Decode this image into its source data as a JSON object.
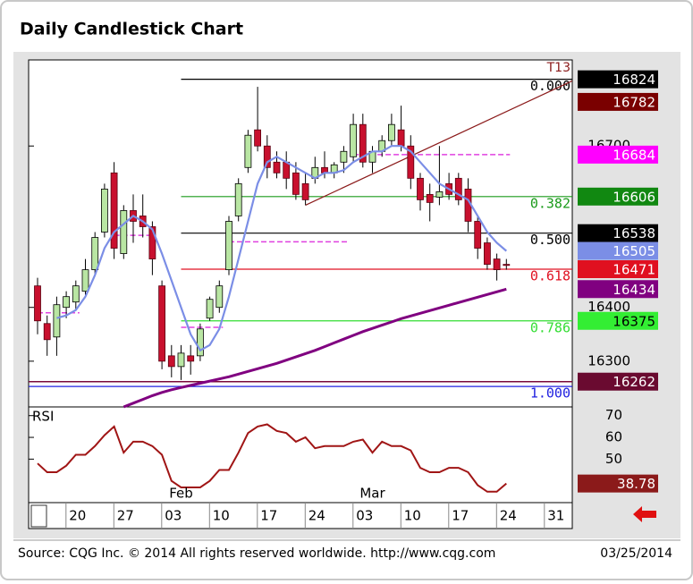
{
  "chart_data": {
    "type": "candlestick",
    "title": "Daily Candlestick Chart",
    "source": "Source: CQG Inc. © 2014 All rights reserved worldwide. http://www.cqg.com",
    "date": "03/25/2014",
    "ylim": [
      16215,
      16860
    ],
    "yticks": [
      16300,
      16400,
      16700
    ],
    "up_color": "#b9e6a3",
    "down_color": "#c8102e",
    "open": [
      16440,
      16370,
      16345,
      16400,
      16410,
      16430,
      16470,
      16540,
      16650,
      16500,
      16580,
      16570,
      16550,
      16440,
      16310,
      16290,
      16310,
      16310,
      16380,
      16400,
      16470,
      16570,
      16660,
      16730,
      16700,
      16670,
      16670,
      16650,
      16630,
      16640,
      16660,
      16650,
      16670,
      16680,
      16740,
      16670,
      16690,
      16710,
      16730,
      16700,
      16640,
      16610,
      16605,
      16630,
      16640,
      16620,
      16560,
      16520,
      16490,
      16480
    ],
    "high": [
      16455,
      16385,
      16420,
      16430,
      16450,
      16490,
      16540,
      16630,
      16670,
      16590,
      16610,
      16610,
      16560,
      16450,
      16330,
      16330,
      16330,
      16370,
      16420,
      16450,
      16570,
      16640,
      16730,
      16810,
      16720,
      16690,
      16690,
      16670,
      16650,
      16680,
      16690,
      16670,
      16700,
      16760,
      16760,
      16700,
      16720,
      16760,
      16775,
      16720,
      16650,
      16630,
      16700,
      16650,
      16650,
      16640,
      16570,
      16530,
      16500,
      16490
    ],
    "low": [
      16350,
      16310,
      16310,
      16380,
      16395,
      16420,
      16460,
      16530,
      16490,
      16490,
      16520,
      16530,
      16460,
      16285,
      16270,
      16265,
      16275,
      16300,
      16375,
      16390,
      16460,
      16560,
      16650,
      16690,
      16640,
      16640,
      16620,
      16600,
      16590,
      16630,
      16640,
      16640,
      16650,
      16670,
      16660,
      16650,
      16680,
      16700,
      16690,
      16620,
      16580,
      16560,
      16590,
      16600,
      16590,
      16540,
      16490,
      16470,
      16450,
      16470
    ],
    "close": [
      16375,
      16340,
      16405,
      16420,
      16440,
      16470,
      16530,
      16620,
      16510,
      16580,
      16560,
      16550,
      16490,
      16300,
      16290,
      16315,
      16300,
      16360,
      16415,
      16440,
      16560,
      16630,
      16720,
      16700,
      16660,
      16650,
      16640,
      16610,
      16600,
      16660,
      16650,
      16665,
      16690,
      16740,
      16670,
      16690,
      16710,
      16740,
      16700,
      16640,
      16600,
      16595,
      16615,
      16610,
      16600,
      16560,
      16510,
      16480,
      16470,
      16478
    ],
    "ma_fast": {
      "color": "#7b8ee6",
      "values": [
        null,
        null,
        16380,
        16385,
        16395,
        16420,
        16460,
        16510,
        16540,
        16555,
        16570,
        16560,
        16545,
        16500,
        16450,
        16400,
        16350,
        16320,
        16330,
        16360,
        16420,
        16490,
        16560,
        16630,
        16670,
        16680,
        16670,
        16660,
        16650,
        16640,
        16650,
        16650,
        16655,
        16670,
        16680,
        16690,
        16690,
        16700,
        16700,
        16690,
        16670,
        16650,
        16630,
        16620,
        16610,
        16600,
        16570,
        16540,
        16520,
        16505
      ]
    },
    "ma_slow": {
      "color": "#800080",
      "values": [
        null,
        null,
        null,
        null,
        null,
        null,
        null,
        null,
        null,
        16215,
        16222,
        16229,
        16236,
        16242,
        16247,
        16251,
        16255,
        16259,
        16263,
        16267,
        16271,
        16276,
        16281,
        16286,
        16291,
        16296,
        16302,
        16308,
        16314,
        16320,
        16327,
        16334,
        16341,
        16348,
        16355,
        16361,
        16367,
        16373,
        16379,
        16384,
        16389,
        16394,
        16399,
        16404,
        16409,
        16414,
        16419,
        16424,
        16429,
        16434
      ]
    },
    "fib_levels": [
      {
        "label": "0.000",
        "value": 16824,
        "color": "#000000",
        "start": 15
      },
      {
        "label": "0.382",
        "value": 16606,
        "color": "#1a9a1a",
        "start": 15
      },
      {
        "label": "0.500",
        "value": 16538,
        "color": "#000000",
        "start": 15
      },
      {
        "label": "0.618",
        "value": 16471,
        "color": "#e01020",
        "start": 15
      },
      {
        "label": "0.786",
        "value": 16375,
        "color": "#33dd33",
        "start": 15
      },
      {
        "label": "1.000",
        "value": 16253,
        "color": "#2020e0",
        "start": -1
      }
    ],
    "level_lines": [
      {
        "value": 16262,
        "color": "#7a0a3a",
        "start": -1
      }
    ],
    "dashed_levels": [
      {
        "value": 16390,
        "start": 0,
        "end": 4
      },
      {
        "value": 16534,
        "start": 8,
        "end": 12
      },
      {
        "value": 16363,
        "start": 15,
        "end": 19
      },
      {
        "value": 16522,
        "start": 20,
        "end": 32
      },
      {
        "value": 16684,
        "start": 33,
        "end": 49
      }
    ],
    "dashed_color": "#e040e0",
    "trendline": {
      "label": "T13",
      "color": "#8b1a1a",
      "from": [
        28,
        16590
      ],
      "to": [
        56,
        16822
      ]
    },
    "price_markers": [
      {
        "value": 16824,
        "color": "#000000",
        "text_color": "#ffffff"
      },
      {
        "value": 16782,
        "color": "#7a0000",
        "text_color": "#ffffff"
      },
      {
        "value": 16684,
        "color": "#ff00ff",
        "text_color": "#ffffff"
      },
      {
        "value": 16606,
        "color": "#118811",
        "text_color": "#ffffff"
      },
      {
        "value": 16538,
        "color": "#000000",
        "text_color": "#ffffff"
      },
      {
        "value": 16505,
        "color": "#7b8ee6",
        "text_color": "#ffffff"
      },
      {
        "value": 16471,
        "color": "#e01020",
        "text_color": "#ffffff"
      },
      {
        "value": 16434,
        "color": "#800080",
        "text_color": "#ffffff"
      },
      {
        "value": 16375,
        "color": "#33ee33",
        "text_color": "#000000"
      },
      {
        "value": 16262,
        "color": "#6a0a30",
        "text_color": "#ffffff"
      }
    ],
    "x_labels": [
      "20",
      "27",
      "03",
      "10",
      "17",
      "24",
      "03",
      "10",
      "17",
      "24",
      "31"
    ],
    "x_label_index": [
      4,
      9,
      14,
      19,
      24,
      29,
      34,
      39,
      44,
      49,
      54
    ],
    "months": [
      "Feb",
      "Mar"
    ],
    "month_index": [
      15,
      35
    ],
    "rsi": {
      "label": "RSI",
      "color": "#a01515",
      "marker_color": "#8b1a1a",
      "ylim": [
        30,
        74
      ],
      "yticks": [
        50,
        60,
        70
      ],
      "values": [
        48,
        44,
        44,
        47,
        52,
        52,
        56,
        61,
        65,
        53,
        58,
        58,
        56,
        52,
        40,
        37,
        37,
        37,
        40,
        45,
        45,
        53,
        62,
        65,
        66,
        63,
        62,
        58,
        60,
        55,
        56,
        56,
        56,
        58,
        59,
        53,
        58,
        56,
        56,
        54,
        46,
        44,
        44,
        46,
        46,
        44,
        38,
        35,
        35,
        38.78
      ]
    }
  }
}
